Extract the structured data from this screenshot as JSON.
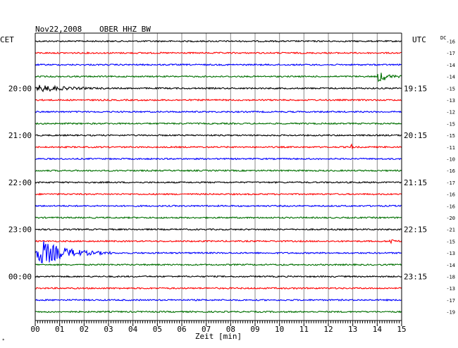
{
  "header": {
    "date": "Nov22,2008",
    "station": "OBER HHZ BW",
    "left_tz": "CET",
    "right_tz": "UTC",
    "dc_label": "DC"
  },
  "axis": {
    "xlabel": "Zeit [min]",
    "ticks": [
      "00",
      "01",
      "02",
      "03",
      "04",
      "05",
      "06",
      "07",
      "08",
      "09",
      "10",
      "11",
      "12",
      "13",
      "14",
      "15"
    ]
  },
  "chart_data": {
    "type": "line",
    "title": "Nov22,2008 OBER HHZ BW",
    "xlabel": "Zeit [min]",
    "xlim": [
      0,
      15
    ],
    "trace_colors": [
      "#000000",
      "#ff0000",
      "#0000ff",
      "#007000"
    ],
    "left_time_labels": [
      {
        "trace": 4,
        "label": "20:00"
      },
      {
        "trace": 8,
        "label": "21:00"
      },
      {
        "trace": 12,
        "label": "22:00"
      },
      {
        "trace": 16,
        "label": "23:00"
      },
      {
        "trace": 20,
        "label": "00:00"
      }
    ],
    "right_time_labels": [
      {
        "trace": 4,
        "label": "19:15"
      },
      {
        "trace": 8,
        "label": "20:15"
      },
      {
        "trace": 12,
        "label": "21:15"
      },
      {
        "trace": 16,
        "label": "22:15"
      },
      {
        "trace": 20,
        "label": "23:15"
      }
    ],
    "dc_values": [
      "-16",
      "-17",
      "-14",
      "-14",
      "-15",
      "-13",
      "-12",
      "-15",
      "-15",
      "-11",
      "-10",
      "-16",
      "-17",
      "-16",
      "-16",
      "-20",
      "-21",
      "-15",
      "-13",
      "-14",
      "-18",
      "-13",
      "-17",
      "-19"
    ],
    "events": [
      {
        "trace": 3,
        "start_min": 14.0,
        "end_min": 15.0,
        "amplitude": 1.0
      },
      {
        "trace": 4,
        "start_min": 0.0,
        "end_min": 3.0,
        "amplitude": 0.5
      },
      {
        "trace": 9,
        "start_min": 12.9,
        "end_min": 13.1,
        "amplitude": 0.6
      },
      {
        "trace": 17,
        "start_min": 14.5,
        "end_min": 15.0,
        "amplitude": 0.5
      },
      {
        "trace": 18,
        "start_min": 0.0,
        "end_min": 3.2,
        "amplitude": 2.0
      },
      {
        "trace": 21,
        "start_min": 10.7,
        "end_min": 10.9,
        "amplitude": 0.3
      }
    ]
  }
}
